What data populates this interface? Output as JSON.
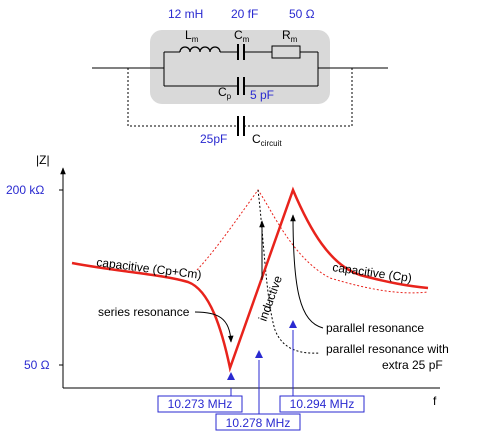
{
  "circuit": {
    "lm_value": "12 mH",
    "lm_label": "L",
    "lm_sub": "m",
    "cm_value": "20 fF",
    "cm_label": "C",
    "cm_sub": "m",
    "rm_value": "50 Ω",
    "rm_label": "R",
    "rm_sub": "m",
    "cp_label": "C",
    "cp_sub": "p",
    "cp_value": "5 pF",
    "cc_value": "25pF",
    "cc_label": "C",
    "cc_sub": "circuit"
  },
  "plot": {
    "ylabel": "|Z|",
    "xlabel": "f",
    "ytick_high": "200 kΩ",
    "ytick_low": "50 Ω",
    "freq_series": "10.273 MHz",
    "freq_mid": "10.278 MHz",
    "freq_parallel": "10.294 MHz",
    "label_cap_left": "capacitive (Cp+Cm)",
    "label_cap_right": "capacitive (Cp)",
    "label_series": "series resonance",
    "label_inductive": "inductive",
    "label_parallel": "parallel resonance",
    "label_parallel_extra_1": "parallel resonance with",
    "label_parallel_extra_2": "extra 25 pF"
  },
  "colors": {
    "accent_blue": "#2a2ad0",
    "curve_red": "#e8231c",
    "box_gray": "#d9d9d9"
  }
}
